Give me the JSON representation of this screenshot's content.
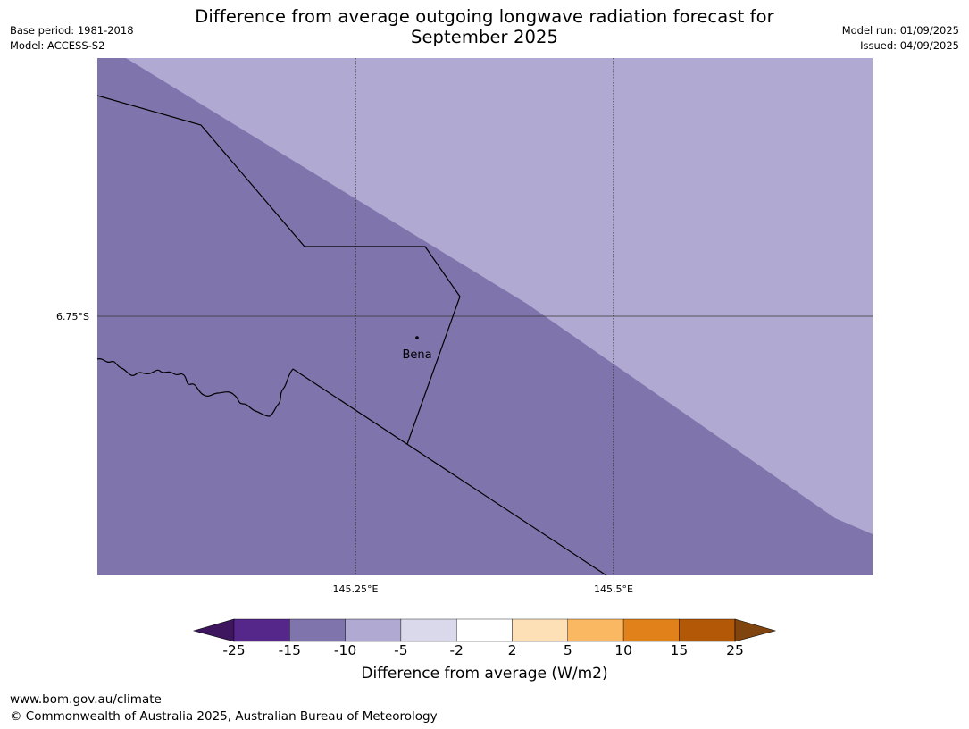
{
  "title_line1": "Difference from average outgoing longwave radiation forecast for",
  "title_line2": "September 2025",
  "base_period": "Base period: 1981-2018",
  "model": "Model: ACCESS-S2",
  "model_run": "Model run: 01/09/2025",
  "issued": "Issued: 04/09/2025",
  "map": {
    "lat_label": "6.75°S",
    "lon_labels": [
      "145.25°E",
      "145.5°E"
    ],
    "place_label": "Bena",
    "colors": {
      "inner_band": "#8074ac",
      "outer_band": "#b0aad2"
    }
  },
  "colorbar": {
    "title": "Difference from average (W/m2)",
    "ticks": [
      "-25",
      "-15",
      "-10",
      "-5",
      "-2",
      "2",
      "5",
      "10",
      "15",
      "25"
    ],
    "colors": [
      "#3e1660",
      "#56278b",
      "#8074ac",
      "#b0aad2",
      "#d9d9eb",
      "#ffffff",
      "#fde0b6",
      "#fbb862",
      "#e0811a",
      "#b35806",
      "#80450f"
    ]
  },
  "footer_url": "www.bom.gov.au/climate",
  "footer_copyright": "© Commonwealth of Australia 2025, Australian Bureau of Meteorology"
}
